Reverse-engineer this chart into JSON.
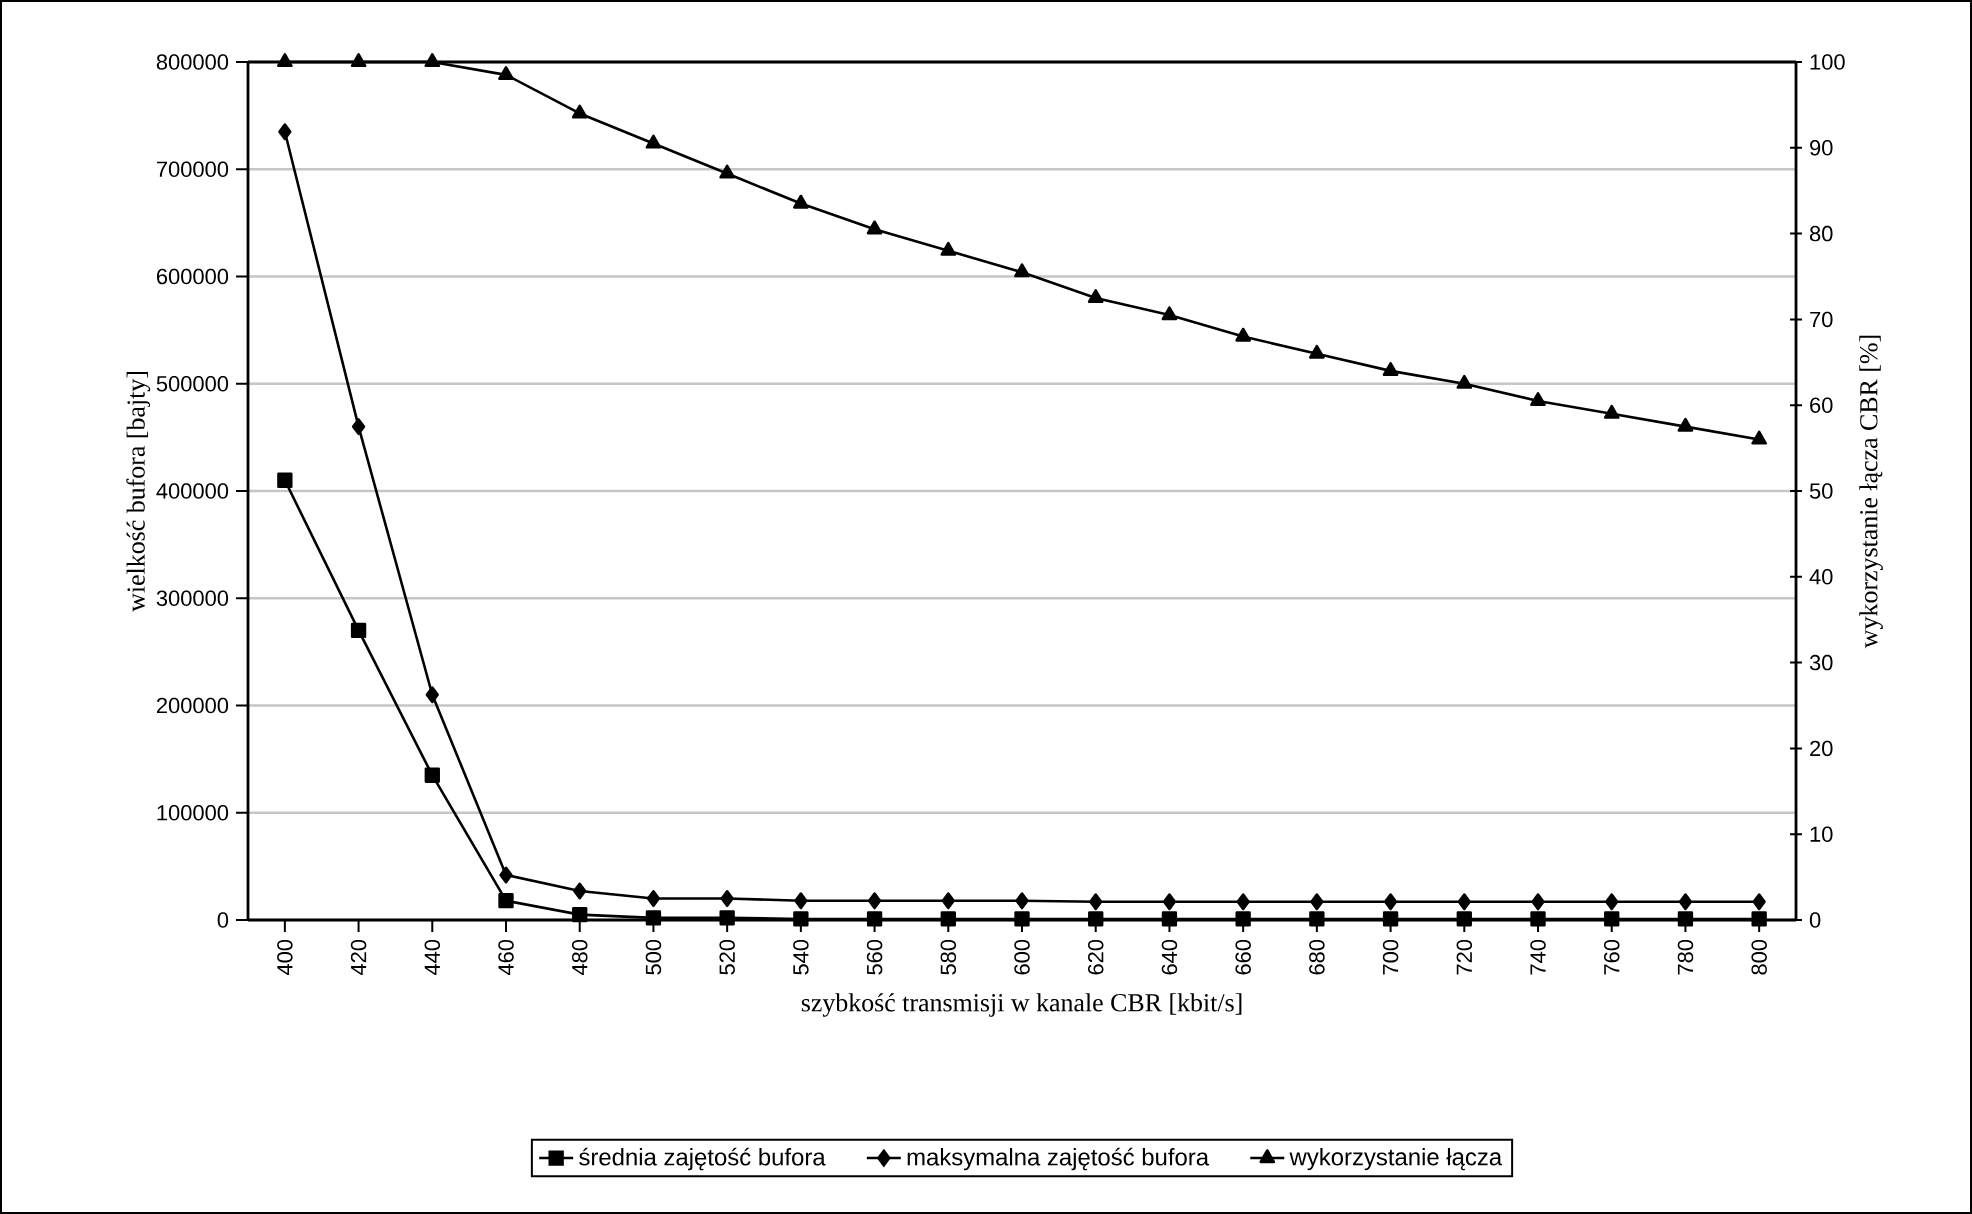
{
  "chart_data": {
    "type": "line",
    "xlabel": "szybkość transmisji w kanale CBR  [kbit/s]",
    "ylabel": "wielkość bufora [bajty]",
    "y2label": "wykorzystanie łącza CBR [%]",
    "categories": [
      "400",
      "420",
      "440",
      "460",
      "480",
      "500",
      "520",
      "540",
      "560",
      "580",
      "600",
      "620",
      "640",
      "660",
      "680",
      "700",
      "720",
      "740",
      "760",
      "780",
      "800"
    ],
    "series": [
      {
        "name": "średnia zajętość bufora",
        "color": "#000000",
        "marker": "square",
        "values": [
          410000,
          270000,
          135000,
          18000,
          5000,
          2000,
          2000,
          1000,
          1000,
          1000,
          1000,
          1000,
          1000,
          1000,
          1000,
          1000,
          1000,
          1000,
          1000,
          1000,
          1000
        ]
      },
      {
        "name": "maksymalna zajętość bufora",
        "color": "#000000",
        "marker": "diamond",
        "values": [
          735000,
          460000,
          210000,
          42000,
          27000,
          20000,
          20000,
          18000,
          18000,
          18000,
          18000,
          17000,
          17000,
          17000,
          17000,
          17000,
          17000,
          17000,
          17000,
          17000,
          17000
        ]
      },
      {
        "name": "wykorzystanie łącza",
        "color": "#000000",
        "marker": "triangle",
        "axis": "y2",
        "values": [
          100,
          100,
          100,
          98.5,
          94,
          90.5,
          87,
          83.5,
          80.5,
          78,
          75.5,
          72.5,
          70.5,
          68,
          66,
          64,
          62.5,
          60.5,
          59,
          57.5,
          56
        ]
      }
    ],
    "ylim": [
      0,
      800000
    ],
    "yticks": [
      0,
      100000,
      200000,
      300000,
      400000,
      500000,
      600000,
      700000,
      800000
    ],
    "y2lim": [
      0,
      100
    ],
    "y2ticks": [
      0,
      10,
      20,
      30,
      40,
      50,
      60,
      70,
      80,
      90,
      100
    ],
    "grid": "y",
    "legend": "bottom",
    "line_style": "solid"
  }
}
